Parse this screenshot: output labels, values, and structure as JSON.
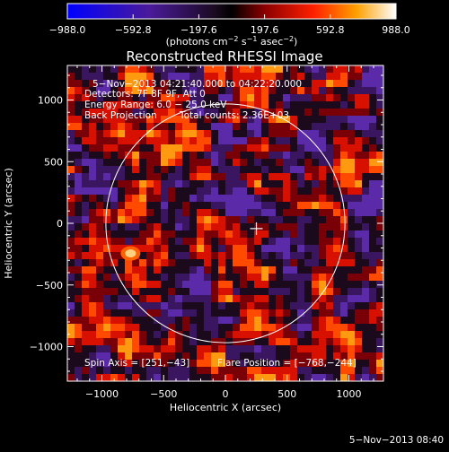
{
  "colorbar": {
    "ticks": [
      -988.0,
      -592.8,
      -197.6,
      197.6,
      592.8,
      988.0
    ],
    "tick_labels": [
      "−988.0",
      "−592.8",
      "−197.6",
      "197.6",
      "592.8",
      "988.0"
    ],
    "unit_prefix": "(photons cm",
    "unit_exp1": "−2",
    "unit_mid": " s",
    "unit_exp2": "−1",
    "unit_mid2": " asec",
    "unit_exp3": "−2",
    "unit_suffix": ")"
  },
  "chart_data": {
    "type": "heatmap",
    "title": "Reconstructed RHESSI Image",
    "xlabel": "Heliocentric X (arcsec)",
    "ylabel": "Heliocentric Y (arcsec)",
    "xlim": [
      -1280,
      1280
    ],
    "ylim": [
      -1280,
      1280
    ],
    "x_ticks": [
      -1000,
      -500,
      0,
      500,
      1000
    ],
    "x_tick_labels": [
      "−1000",
      "−500",
      "0",
      "500",
      "1000"
    ],
    "y_ticks": [
      -1000,
      -500,
      0,
      500,
      1000
    ],
    "y_tick_labels": [
      "−1000",
      "−500",
      "0",
      "500",
      "1000"
    ],
    "solar_disk_radius_arcsec": 968,
    "marker_position": [
      251,
      -43
    ],
    "bright_source": [
      -768,
      -244
    ],
    "value_range": [
      -988.0,
      988.0
    ]
  },
  "annotations": {
    "time_range": "5−Nov−2013 04:21:40.000 to 04:22:20.000",
    "detectors": "Detectors: 7F 8F 9F, Att 0",
    "energy_range": "Energy Range: 6.0 − 25.0 keV",
    "method": "Back Projection",
    "total_counts": "Total counts: 2.36E+03",
    "spin_axis": "Spin Axis = [251,−43]",
    "flare_position": "Flare Position = [−768,−244]"
  },
  "footer": {
    "timestamp": "5−Nov−2013 08:40"
  },
  "colors": {
    "background": "#000000",
    "disk": "#ffffff"
  }
}
